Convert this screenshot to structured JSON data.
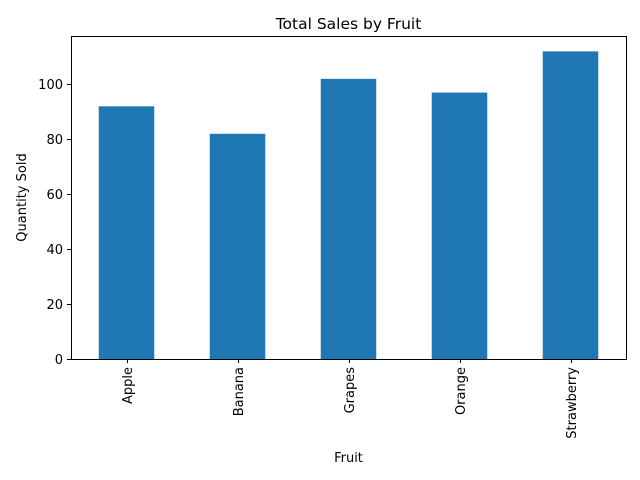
{
  "chart_data": {
    "type": "bar",
    "title": "Total Sales by Fruit",
    "xlabel": "Fruit",
    "ylabel": "Quantity Sold",
    "categories": [
      "Apple",
      "Banana",
      "Grapes",
      "Orange",
      "Strawberry"
    ],
    "values": [
      92,
      82,
      102,
      97,
      112
    ],
    "ylim": [
      0,
      117.6
    ],
    "yticks": [
      0,
      20,
      40,
      60,
      80,
      100
    ],
    "xtick_rotation": 90,
    "grid": false,
    "legend": "none",
    "bar_color": "#1f77b4"
  }
}
